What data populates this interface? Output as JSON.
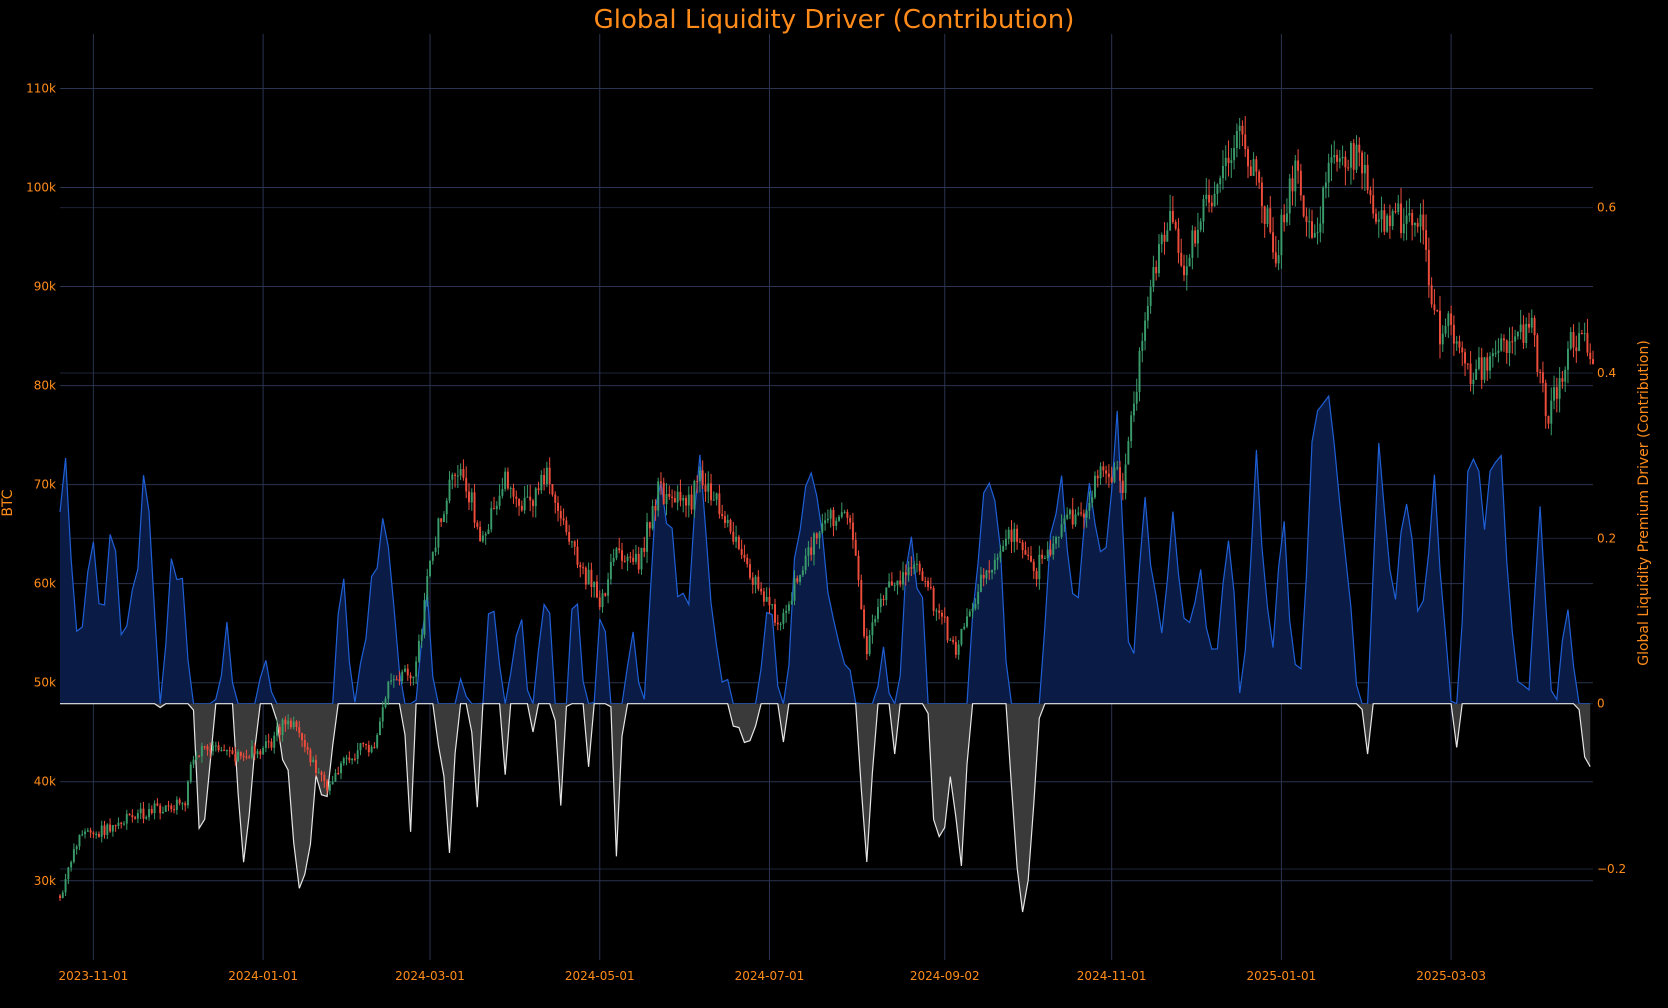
{
  "chart_data": {
    "type": "candlestick+area",
    "title": "Global Liquidity Driver (Contribution)",
    "y_left_label": "BTC",
    "y_right_label": "Global Liquidity Premium Driver (Contribution)",
    "x_range": [
      "2023-10-20",
      "2025-04-23"
    ],
    "x_ticks": [
      "2023-11-01",
      "2024-01-01",
      "2024-03-01",
      "2024-05-01",
      "2024-07-01",
      "2024-09-02",
      "2024-11-01",
      "2025-01-01",
      "2025-03-03"
    ],
    "y_left_range": [
      22000,
      115500
    ],
    "y_left_ticks": [
      30000,
      40000,
      50000,
      60000,
      70000,
      80000,
      90000,
      100000,
      110000
    ],
    "y_left_tick_labels": [
      "30k",
      "40k",
      "50k",
      "60k",
      "70k",
      "80k",
      "90k",
      "100k",
      "110k"
    ],
    "y_right_range": [
      -0.31,
      0.81
    ],
    "y_right_ticks": [
      -0.2,
      0,
      0.2,
      0.4,
      0.6
    ],
    "y_right_tick_labels": [
      "−0.2",
      "0",
      "0.2",
      "0.4",
      "0.6"
    ],
    "grid": true,
    "colors": {
      "background": "#000000",
      "up": "#3a9b6a",
      "down": "#ef4d3c",
      "positive_line": "#1f5fd6",
      "positive_fill": "#0a1c45",
      "negative_line": "#e6e6e6",
      "negative_fill": "#3a3a3a",
      "text": "#ff8c1a",
      "grid": "#2a3350"
    },
    "btc_anchors": [
      [
        "2023-10-20",
        28500
      ],
      [
        "2023-10-23",
        31000
      ],
      [
        "2023-10-27",
        34500
      ],
      [
        "2023-11-01",
        34500
      ],
      [
        "2023-11-10",
        36000
      ],
      [
        "2023-11-20",
        37000
      ],
      [
        "2023-12-04",
        38000
      ],
      [
        "2023-12-06",
        42000
      ],
      [
        "2023-12-10",
        43500
      ],
      [
        "2023-12-20",
        42500
      ],
      [
        "2024-01-01",
        43000
      ],
      [
        "2024-01-08",
        45500
      ],
      [
        "2024-01-12",
        46500
      ],
      [
        "2024-01-18",
        42000
      ],
      [
        "2024-01-24",
        39500
      ],
      [
        "2024-02-01",
        42500
      ],
      [
        "2024-02-10",
        44000
      ],
      [
        "2024-02-15",
        50500
      ],
      [
        "2024-02-25",
        51500
      ],
      [
        "2024-03-01",
        62000
      ],
      [
        "2024-03-05",
        67000
      ],
      [
        "2024-03-12",
        72500
      ],
      [
        "2024-03-20",
        64000
      ],
      [
        "2024-03-27",
        70500
      ],
      [
        "2024-04-05",
        68000
      ],
      [
        "2024-04-12",
        70500
      ],
      [
        "2024-04-20",
        64500
      ],
      [
        "2024-05-01",
        58000
      ],
      [
        "2024-05-07",
        63000
      ],
      [
        "2024-05-15",
        62000
      ],
      [
        "2024-05-22",
        69500
      ],
      [
        "2024-06-01",
        67500
      ],
      [
        "2024-06-07",
        71000
      ],
      [
        "2024-06-15",
        66500
      ],
      [
        "2024-06-24",
        60500
      ],
      [
        "2024-07-05",
        56000
      ],
      [
        "2024-07-15",
        63500
      ],
      [
        "2024-07-22",
        67000
      ],
      [
        "2024-07-30",
        66000
      ],
      [
        "2024-08-05",
        53500
      ],
      [
        "2024-08-12",
        59500
      ],
      [
        "2024-08-22",
        62000
      ],
      [
        "2024-09-06",
        53500
      ],
      [
        "2024-09-15",
        60000
      ],
      [
        "2024-09-26",
        65000
      ],
      [
        "2024-10-05",
        61500
      ],
      [
        "2024-10-14",
        66000
      ],
      [
        "2024-10-22",
        67500
      ],
      [
        "2024-10-29",
        72000
      ],
      [
        "2024-11-05",
        70000
      ],
      [
        "2024-11-10",
        80000
      ],
      [
        "2024-11-13",
        88000
      ],
      [
        "2024-11-22",
        98000
      ],
      [
        "2024-11-26",
        92000
      ],
      [
        "2024-12-05",
        98000
      ],
      [
        "2024-12-17",
        106500
      ],
      [
        "2024-12-30",
        93500
      ],
      [
        "2025-01-06",
        101500
      ],
      [
        "2025-01-13",
        94500
      ],
      [
        "2025-01-20",
        104500
      ],
      [
        "2025-01-31",
        102000
      ],
      [
        "2025-02-03",
        97000
      ],
      [
        "2025-02-20",
        96500
      ],
      [
        "2025-02-27",
        84500
      ],
      [
        "2025-03-03",
        86500
      ],
      [
        "2025-03-10",
        80500
      ],
      [
        "2025-03-20",
        84000
      ],
      [
        "2025-04-01",
        85500
      ],
      [
        "2025-04-07",
        76500
      ],
      [
        "2025-04-15",
        84500
      ],
      [
        "2025-04-23",
        83500
      ]
    ],
    "driver_anchors": [
      [
        "2023-10-20",
        0.24
      ],
      [
        "2023-10-22",
        0.29
      ],
      [
        "2023-10-24",
        0.18
      ],
      [
        "2023-10-27",
        0.03
      ],
      [
        "2023-10-31",
        0.23
      ],
      [
        "2023-11-04",
        0.11
      ],
      [
        "2023-11-08",
        0.21
      ],
      [
        "2023-11-12",
        0.06
      ],
      [
        "2023-11-16",
        0.15
      ],
      [
        "2023-11-20",
        0.29
      ],
      [
        "2023-11-25",
        0.02
      ],
      [
        "2023-11-30",
        0.19
      ],
      [
        "2023-12-04",
        0.12
      ],
      [
        "2023-12-07",
        -0.02
      ],
      [
        "2023-12-10",
        -0.2
      ],
      [
        "2023-12-15",
        0.0
      ],
      [
        "2023-12-20",
        0.1
      ],
      [
        "2023-12-25",
        -0.21
      ],
      [
        "2024-01-01",
        0.06
      ],
      [
        "2024-01-05",
        -0.02
      ],
      [
        "2024-01-10",
        -0.1
      ],
      [
        "2024-01-15",
        -0.26
      ],
      [
        "2024-01-20",
        -0.07
      ],
      [
        "2024-01-25",
        -0.14
      ],
      [
        "2024-01-29",
        0.2
      ],
      [
        "2024-02-03",
        -0.02
      ],
      [
        "2024-02-08",
        0.13
      ],
      [
        "2024-02-13",
        0.21
      ],
      [
        "2024-02-18",
        0.1
      ],
      [
        "2024-02-23",
        -0.14
      ],
      [
        "2024-02-28",
        0.16
      ],
      [
        "2024-03-03",
        0.0
      ],
      [
        "2024-03-08",
        -0.18
      ],
      [
        "2024-03-13",
        0.06
      ],
      [
        "2024-03-18",
        -0.13
      ],
      [
        "2024-03-23",
        0.18
      ],
      [
        "2024-03-28",
        -0.07
      ],
      [
        "2024-04-02",
        0.14
      ],
      [
        "2024-04-07",
        -0.04
      ],
      [
        "2024-04-12",
        0.17
      ],
      [
        "2024-04-17",
        -0.14
      ],
      [
        "2024-04-22",
        0.2
      ],
      [
        "2024-04-27",
        -0.1
      ],
      [
        "2024-05-02",
        0.18
      ],
      [
        "2024-05-07",
        -0.16
      ],
      [
        "2024-05-12",
        0.12
      ],
      [
        "2024-05-17",
        -0.01
      ],
      [
        "2024-05-22",
        0.29
      ],
      [
        "2024-05-27",
        0.19
      ],
      [
        "2024-06-01",
        0.09
      ],
      [
        "2024-06-06",
        0.3
      ],
      [
        "2024-06-11",
        0.08
      ],
      [
        "2024-06-16",
        0.02
      ],
      [
        "2024-06-21",
        -0.05
      ],
      [
        "2024-06-26",
        -0.01
      ],
      [
        "2024-07-01",
        0.12
      ],
      [
        "2024-07-06",
        -0.05
      ],
      [
        "2024-07-11",
        0.21
      ],
      [
        "2024-07-16",
        0.29
      ],
      [
        "2024-07-21",
        0.17
      ],
      [
        "2024-07-26",
        0.09
      ],
      [
        "2024-07-31",
        0.04
      ],
      [
        "2024-08-05",
        -0.18
      ],
      [
        "2024-08-10",
        0.09
      ],
      [
        "2024-08-15",
        -0.07
      ],
      [
        "2024-08-20",
        0.2
      ],
      [
        "2024-08-25",
        0.12
      ],
      [
        "2024-08-30",
        -0.18
      ],
      [
        "2024-09-04",
        -0.1
      ],
      [
        "2024-09-08",
        -0.22
      ],
      [
        "2024-09-12",
        0.1
      ],
      [
        "2024-09-17",
        0.27
      ],
      [
        "2024-09-22",
        0.19
      ],
      [
        "2024-09-27",
        -0.15
      ],
      [
        "2024-10-01",
        -0.28
      ],
      [
        "2024-10-05",
        -0.04
      ],
      [
        "2024-10-10",
        0.18
      ],
      [
        "2024-10-14",
        0.28
      ],
      [
        "2024-10-19",
        0.08
      ],
      [
        "2024-10-24",
        0.27
      ],
      [
        "2024-10-29",
        0.18
      ],
      [
        "2024-11-03",
        0.34
      ],
      [
        "2024-11-08",
        0.02
      ],
      [
        "2024-11-13",
        0.25
      ],
      [
        "2024-11-18",
        0.07
      ],
      [
        "2024-11-23",
        0.21
      ],
      [
        "2024-11-28",
        0.06
      ],
      [
        "2024-12-03",
        0.16
      ],
      [
        "2024-12-08",
        0.05
      ],
      [
        "2024-12-13",
        0.22
      ],
      [
        "2024-12-18",
        -0.03
      ],
      [
        "2024-12-23",
        0.32
      ],
      [
        "2024-12-28",
        0.04
      ],
      [
        "2025-01-02",
        0.22
      ],
      [
        "2025-01-07",
        -0.02
      ],
      [
        "2025-01-12",
        0.3
      ],
      [
        "2025-01-17",
        0.38
      ],
      [
        "2025-01-22",
        0.26
      ],
      [
        "2025-01-27",
        0.06
      ],
      [
        "2025-02-01",
        -0.05
      ],
      [
        "2025-02-05",
        0.33
      ],
      [
        "2025-02-10",
        0.12
      ],
      [
        "2025-02-15",
        0.24
      ],
      [
        "2025-02-20",
        0.09
      ],
      [
        "2025-02-25",
        0.26
      ],
      [
        "2025-03-01",
        0.08
      ],
      [
        "2025-03-05",
        -0.04
      ],
      [
        "2025-03-10",
        0.33
      ],
      [
        "2025-03-15",
        0.21
      ],
      [
        "2025-03-20",
        0.33
      ],
      [
        "2025-03-25",
        0.08
      ],
      [
        "2025-03-30",
        -0.02
      ],
      [
        "2025-04-04",
        0.24
      ],
      [
        "2025-04-09",
        -0.03
      ],
      [
        "2025-04-14",
        0.11
      ],
      [
        "2025-04-19",
        -0.05
      ],
      [
        "2025-04-23",
        -0.11
      ]
    ]
  }
}
